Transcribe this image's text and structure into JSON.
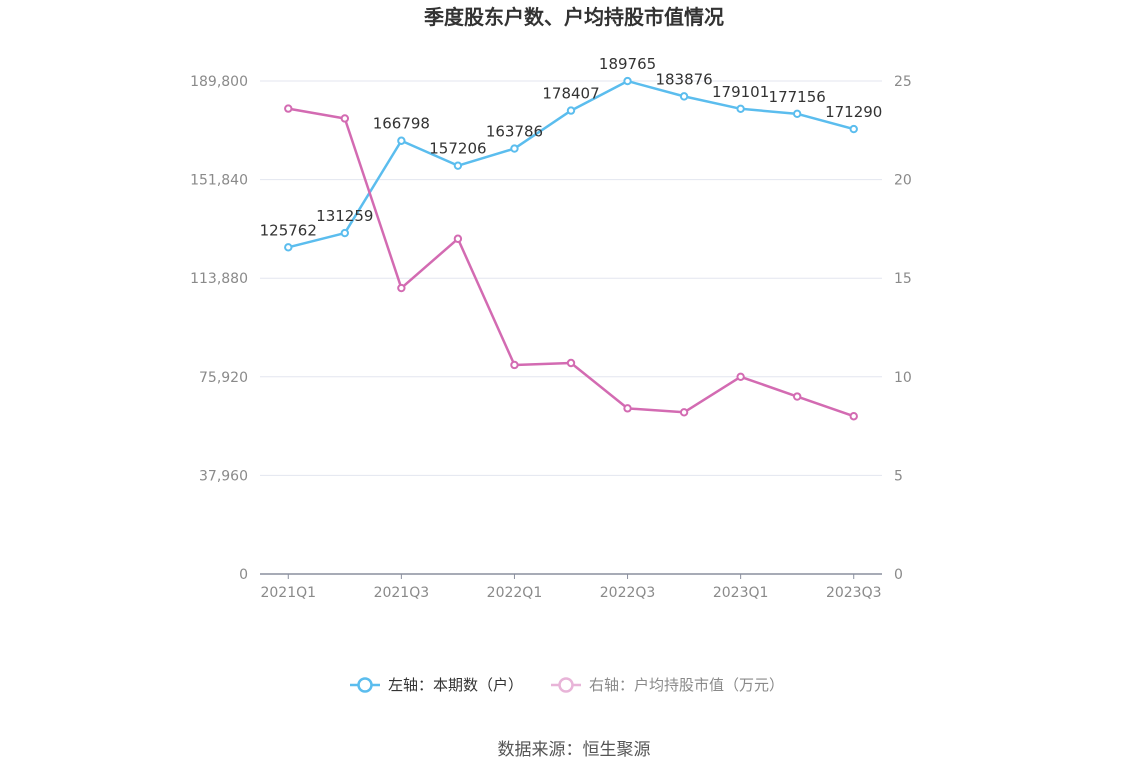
{
  "title": "季度股东户数、户均持股市值情况",
  "source": "数据来源：恒生聚源",
  "colors": {
    "left_series": "#5bbdee",
    "right_series": "#d36bb2",
    "grid": "#e3e6ef",
    "axis": "#8a8f9e"
  },
  "chart_data": {
    "type": "line",
    "x": [
      "2021Q1",
      "2021Q2",
      "2021Q3",
      "2021Q4",
      "2022Q1",
      "2022Q2",
      "2022Q3",
      "2022Q4",
      "2023Q1",
      "2023Q2",
      "2023Q3"
    ],
    "x_tick_labels": [
      "2021Q1",
      "2021Q3",
      "2022Q1",
      "2022Q3",
      "2023Q1",
      "2023Q3"
    ],
    "left_axis": {
      "ylim": [
        0,
        189800
      ],
      "ticks": [
        "0",
        "37,960",
        "75,920",
        "113,880",
        "151,840",
        "189,800"
      ]
    },
    "right_axis": {
      "ylim": [
        0,
        25
      ],
      "ticks": [
        "0",
        "5",
        "10",
        "15",
        "20",
        "25"
      ]
    },
    "grid": true,
    "legend_position": "bottom",
    "series": [
      {
        "name": "左轴：本期数（户）",
        "axis": "left",
        "color": "#5bbdee",
        "values": [
          125762,
          131259,
          166798,
          157206,
          163786,
          178407,
          189765,
          183876,
          179101,
          177156,
          171290
        ],
        "labels": [
          "125762",
          "131259",
          "166798",
          "157206",
          "163786",
          "178407",
          "189765",
          "183876",
          "179101",
          "177156",
          "171290"
        ]
      },
      {
        "name": "右轴：户均持股市值（万元）",
        "axis": "right",
        "color": "#d36bb2",
        "values": [
          23.6,
          23.1,
          14.5,
          17.0,
          10.6,
          10.7,
          8.4,
          8.2,
          10.0,
          9.0,
          8.0
        ]
      }
    ]
  }
}
